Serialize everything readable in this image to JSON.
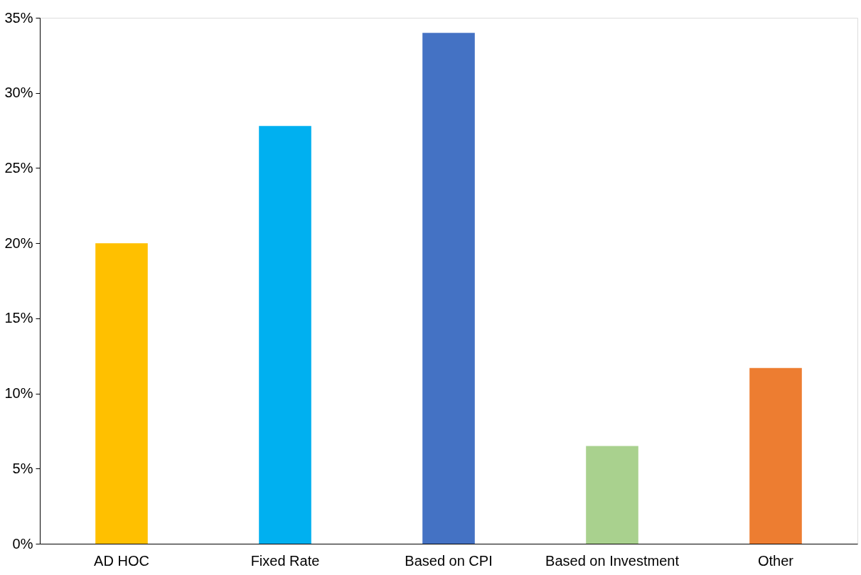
{
  "chart_data": {
    "type": "bar",
    "categories": [
      "AD HOC",
      "Fixed Rate",
      "Based on CPI",
      "Based on Investment",
      "Other"
    ],
    "values": [
      20,
      27.8,
      34.0,
      6.5,
      11.7
    ],
    "colors": [
      "#ffc000",
      "#00b0f0",
      "#4472c4",
      "#a9d18e",
      "#ed7d31"
    ],
    "ylim": [
      0,
      35
    ],
    "yticks": [
      {
        "value": 0,
        "label": "0%"
      },
      {
        "value": 5,
        "label": "5%"
      },
      {
        "value": 10,
        "label": "10%"
      },
      {
        "value": 15,
        "label": "15%"
      },
      {
        "value": 20,
        "label": "20%"
      },
      {
        "value": 25,
        "label": "25%"
      },
      {
        "value": 30,
        "label": "30%"
      },
      {
        "value": 35,
        "label": "35%"
      }
    ],
    "grid": false,
    "legend": false
  }
}
